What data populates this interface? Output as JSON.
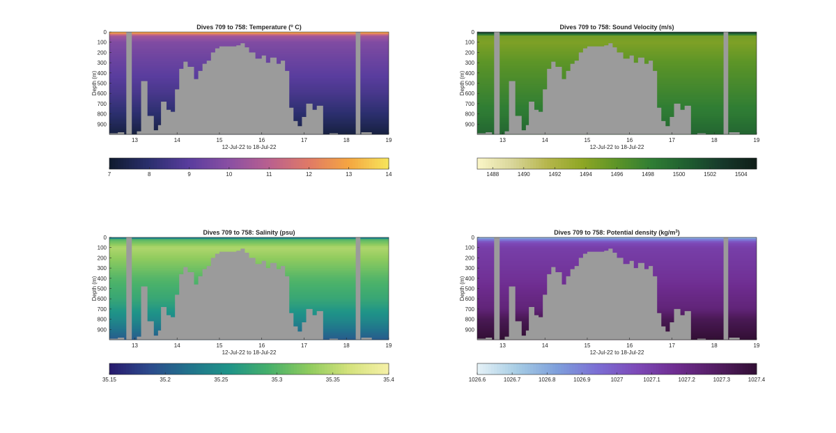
{
  "figure": {
    "charts": [
      {
        "type": "heatmap",
        "title_main": "Dives 709 to 758: Temperature (",
        "title_sup": "o",
        "title_tail": " C)",
        "xlabel": "12-Jul-22 to 18-Jul-22",
        "ylabel": "Depth (m)",
        "xlim": [
          12.4,
          19
        ],
        "ylim": [
          0,
          1000
        ],
        "x_ticks": [
          "13",
          "14",
          "15",
          "16",
          "17",
          "18",
          "19"
        ],
        "x_tick_values": [
          13,
          14,
          15,
          16,
          17,
          18,
          19
        ],
        "y_ticks": [
          "0",
          "100",
          "200",
          "300",
          "400",
          "500",
          "600",
          "700",
          "800",
          "900"
        ],
        "y_tick_values": [
          0,
          100,
          200,
          300,
          400,
          500,
          600,
          700,
          800,
          900
        ],
        "colorbar": {
          "ticks": [
            "7",
            "8",
            "9",
            "10",
            "11",
            "12",
            "13",
            "14"
          ],
          "tick_values": [
            7,
            8,
            9,
            10,
            11,
            12,
            13,
            14
          ],
          "range": [
            7,
            14
          ],
          "colormap": [
            "#0f1b2e",
            "#2b2f6e",
            "#5a3d9e",
            "#8a4fa3",
            "#b9608f",
            "#e07a66",
            "#f5a641",
            "#f6e65c"
          ]
        },
        "profile": [
          [
            0,
            14
          ],
          [
            10,
            12.5
          ],
          [
            40,
            10.5
          ],
          [
            100,
            9.8
          ],
          [
            300,
            9.3
          ],
          [
            600,
            8.6
          ],
          [
            800,
            8.0
          ],
          [
            1000,
            7.3
          ]
        ]
      },
      {
        "type": "heatmap",
        "title_main": "Dives 709 to 758: Sound Velocity (m/s)",
        "title_sup": "",
        "title_tail": "",
        "xlabel": "12-Jul-22 to 18-Jul-22",
        "ylabel": "Depth (m)",
        "xlim": [
          12.4,
          19
        ],
        "ylim": [
          0,
          1000
        ],
        "x_ticks": [
          "13",
          "14",
          "15",
          "16",
          "17",
          "18",
          "19"
        ],
        "x_tick_values": [
          13,
          14,
          15,
          16,
          17,
          18,
          19
        ],
        "y_ticks": [
          "0",
          "100",
          "200",
          "300",
          "400",
          "500",
          "600",
          "700",
          "800",
          "900"
        ],
        "y_tick_values": [
          0,
          100,
          200,
          300,
          400,
          500,
          600,
          700,
          800,
          900
        ],
        "colorbar": {
          "ticks": [
            "1488",
            "1490",
            "1492",
            "1494",
            "1496",
            "1498",
            "1500",
            "1502",
            "1504"
          ],
          "tick_values": [
            1488,
            1490,
            1492,
            1494,
            1496,
            1498,
            1500,
            1502,
            1504
          ],
          "range": [
            1487,
            1505
          ],
          "colormap": [
            "#fbf6c8",
            "#d9d69a",
            "#b6b64c",
            "#8fa725",
            "#5c9427",
            "#2f7d34",
            "#1f5e30",
            "#17392b",
            "#0f1d18"
          ]
        },
        "profile": [
          [
            0,
            1503.5
          ],
          [
            15,
            1500.5
          ],
          [
            40,
            1495
          ],
          [
            100,
            1494.5
          ],
          [
            300,
            1496
          ],
          [
            600,
            1497.5
          ],
          [
            800,
            1498.5
          ],
          [
            1000,
            1500
          ]
        ]
      },
      {
        "type": "heatmap",
        "title_main": "Dives 709 to 758: Salinity (psu)",
        "title_sup": "",
        "title_tail": "",
        "xlabel": "12-Jul-22 to 18-Jul-22",
        "ylabel": "Depth (m)",
        "xlim": [
          12.4,
          19
        ],
        "ylim": [
          0,
          1000
        ],
        "x_ticks": [
          "13",
          "14",
          "15",
          "16",
          "17",
          "18",
          "19"
        ],
        "x_tick_values": [
          13,
          14,
          15,
          16,
          17,
          18,
          19
        ],
        "y_ticks": [
          "0",
          "100",
          "200",
          "300",
          "400",
          "500",
          "600",
          "700",
          "800",
          "900"
        ],
        "y_tick_values": [
          0,
          100,
          200,
          300,
          400,
          500,
          600,
          700,
          800,
          900
        ],
        "colorbar": {
          "ticks": [
            "35.15",
            "35.2",
            "35.25",
            "35.3",
            "35.35",
            "35.4"
          ],
          "tick_values": [
            35.15,
            35.2,
            35.25,
            35.3,
            35.35,
            35.4
          ],
          "range": [
            35.15,
            35.4
          ],
          "colormap": [
            "#281a6d",
            "#2c4a8c",
            "#21738c",
            "#1f9488",
            "#47b06b",
            "#8fcb5e",
            "#d4e27c",
            "#f6f0a8"
          ]
        },
        "profile": [
          [
            0,
            35.2
          ],
          [
            20,
            35.3
          ],
          [
            100,
            35.345
          ],
          [
            200,
            35.33
          ],
          [
            400,
            35.3
          ],
          [
            600,
            35.28
          ],
          [
            800,
            35.245
          ],
          [
            1000,
            35.2
          ]
        ]
      },
      {
        "type": "heatmap",
        "title_main": "Dives 709 to 758: Potential density (kg/m",
        "title_sup": "3",
        "title_tail": ")",
        "xlabel": "12-Jul-22 to 18-Jul-22",
        "ylabel": "Depth (m)",
        "xlim": [
          12.4,
          19
        ],
        "ylim": [
          0,
          1000
        ],
        "x_ticks": [
          "13",
          "14",
          "15",
          "16",
          "17",
          "18",
          "19"
        ],
        "x_tick_values": [
          13,
          14,
          15,
          16,
          17,
          18,
          19
        ],
        "y_ticks": [
          "0",
          "100",
          "200",
          "300",
          "400",
          "500",
          "600",
          "700",
          "800",
          "900"
        ],
        "y_tick_values": [
          0,
          100,
          200,
          300,
          400,
          500,
          600,
          700,
          800,
          900
        ],
        "colorbar": {
          "ticks": [
            "1026.6",
            "1026.7",
            "1026.8",
            "1026.9",
            "1027",
            "1027.1",
            "1027.2",
            "1027.3",
            "1027.4"
          ],
          "tick_values": [
            1026.6,
            1026.7,
            1026.8,
            1026.9,
            1027,
            1027.1,
            1027.2,
            1027.3,
            1027.4
          ],
          "range": [
            1026.6,
            1027.4
          ],
          "colormap": [
            "#e6f2f7",
            "#a6cce4",
            "#7e9fdb",
            "#7c6fd4",
            "#7d4ab8",
            "#6e2c8f",
            "#531d62",
            "#320f34"
          ]
        },
        "profile": [
          [
            0,
            1026.75
          ],
          [
            20,
            1026.9
          ],
          [
            50,
            1027.05
          ],
          [
            100,
            1027.1
          ],
          [
            400,
            1027.15
          ],
          [
            700,
            1027.23
          ],
          [
            800,
            1027.32
          ],
          [
            1000,
            1027.4
          ]
        ]
      }
    ],
    "gap_color": "#9b9b9b",
    "seafloor_depth_by_day": [
      [
        12.4,
        990
      ],
      [
        12.6,
        980
      ],
      [
        12.75,
        1000
      ],
      [
        12.9,
        1000
      ],
      [
        13.05,
        970
      ],
      [
        13.15,
        480
      ],
      [
        13.3,
        820
      ],
      [
        13.45,
        960
      ],
      [
        13.55,
        910
      ],
      [
        13.62,
        680
      ],
      [
        13.75,
        760
      ],
      [
        13.85,
        780
      ],
      [
        13.95,
        560
      ],
      [
        14.05,
        360
      ],
      [
        14.15,
        290
      ],
      [
        14.25,
        340
      ],
      [
        14.4,
        460
      ],
      [
        14.5,
        380
      ],
      [
        14.6,
        310
      ],
      [
        14.7,
        280
      ],
      [
        14.8,
        200
      ],
      [
        14.9,
        160
      ],
      [
        15.0,
        140
      ],
      [
        15.4,
        130
      ],
      [
        15.5,
        110
      ],
      [
        15.6,
        150
      ],
      [
        15.7,
        200
      ],
      [
        15.85,
        260
      ],
      [
        16.0,
        230
      ],
      [
        16.1,
        300
      ],
      [
        16.2,
        250
      ],
      [
        16.35,
        310
      ],
      [
        16.45,
        280
      ],
      [
        16.55,
        380
      ],
      [
        16.65,
        740
      ],
      [
        16.75,
        870
      ],
      [
        16.85,
        920
      ],
      [
        16.95,
        830
      ],
      [
        17.05,
        700
      ],
      [
        17.2,
        760
      ],
      [
        17.3,
        720
      ],
      [
        17.45,
        1000
      ],
      [
        17.6,
        990
      ],
      [
        17.8,
        1000
      ],
      [
        18.0,
        1000
      ],
      [
        18.35,
        980
      ],
      [
        18.6,
        1000
      ],
      [
        19.0,
        1000
      ]
    ],
    "vertical_gaps_days": [
      [
        12.8,
        12.93
      ],
      [
        18.22,
        18.33
      ]
    ]
  }
}
